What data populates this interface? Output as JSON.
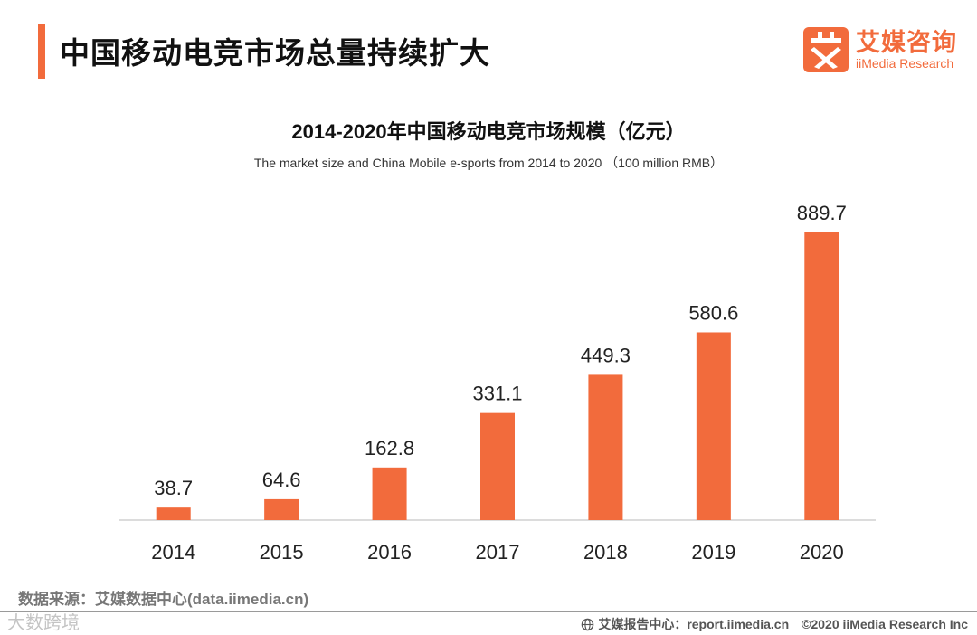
{
  "header": {
    "title": "中国移动电竞市场总量持续扩大"
  },
  "brand": {
    "name_cn": "艾媒咨询",
    "name_en": "iiMedia Research",
    "color": "#f26b3c"
  },
  "chart_data": {
    "type": "bar",
    "title": "2014-2020年中国移动电竞市场规模（亿元）",
    "subtitle": "The market size and China Mobile e-sports from 2014 to 2020 （100 million RMB）",
    "categories": [
      "2014",
      "2015",
      "2016",
      "2017",
      "2018",
      "2019",
      "2020"
    ],
    "values": [
      38.7,
      64.6,
      162.8,
      331.1,
      449.3,
      580.6,
      889.7
    ],
    "data_labels": [
      "38.7",
      "64.6",
      "162.8",
      "331.1",
      "449.3",
      "580.6",
      "889.7"
    ],
    "xlabel": "",
    "ylabel": "",
    "ylim": [
      0,
      889.7
    ],
    "grid": false,
    "legend": "none",
    "bar_color": "#f26b3c"
  },
  "footer": {
    "source": "数据来源：艾媒数据中心(data.iimedia.cn)",
    "watermark": "大数跨境",
    "report_center": "艾媒报告中心：report.iimedia.cn",
    "copyright": "©2020  iiMedia Research  Inc"
  }
}
